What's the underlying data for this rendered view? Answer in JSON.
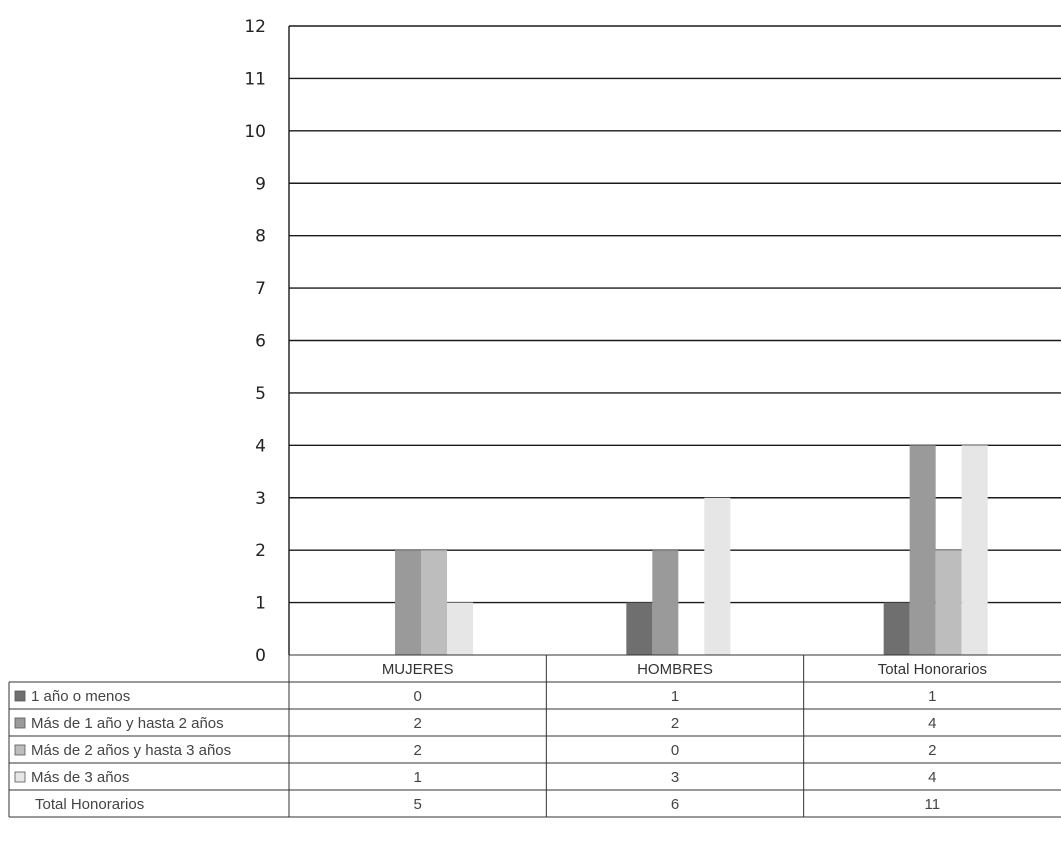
{
  "chart_data": {
    "type": "bar",
    "categories": [
      "MUJERES",
      "HOMBRES",
      "Total Honorarios"
    ],
    "series": [
      {
        "name": "1 año o menos",
        "values": [
          0,
          1,
          1
        ],
        "color": "#6f6f6f"
      },
      {
        "name": "Más de 1 año y hasta 2 años",
        "values": [
          2,
          2,
          4
        ],
        "color": "#9a9a9a"
      },
      {
        "name": "Más de 2 años y hasta 3 años",
        "values": [
          2,
          0,
          2
        ],
        "color": "#bdbdbd"
      },
      {
        "name": "Más de 3 años",
        "values": [
          1,
          3,
          4
        ],
        "color": "#e6e6e6"
      }
    ],
    "total_row": {
      "name": "Total Honorarios",
      "values": [
        5,
        6,
        11
      ]
    },
    "y_ticks": [
      "0",
      "1",
      "2",
      "3",
      "4",
      "5",
      "6",
      "7",
      "8",
      "9",
      "10",
      "11",
      "12"
    ],
    "ylim": [
      0,
      12
    ],
    "grid": true,
    "legend": "data-table-below"
  }
}
